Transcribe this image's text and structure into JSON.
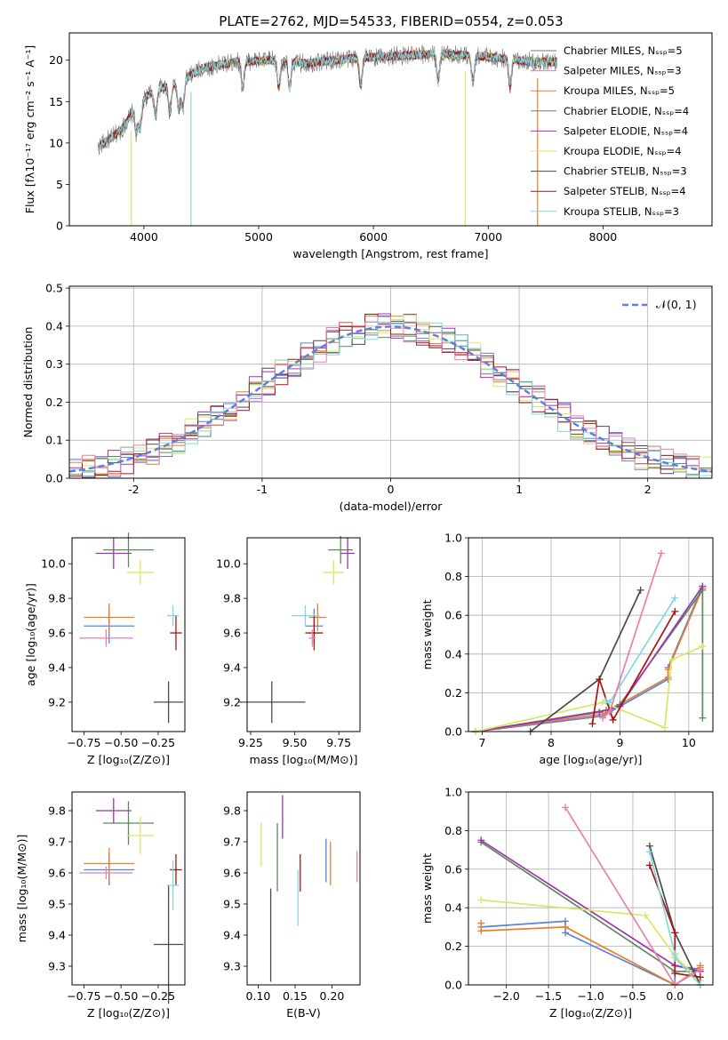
{
  "title": "PLATE=2762, MJD=54533, FIBERID=0554, z=0.053",
  "colors": [
    "#5a82d8",
    "#e87f2a",
    "#5a8a5a",
    "#a032b4",
    "#d8e864",
    "#4a4a4a",
    "#a81414",
    "#80d8e0",
    "#e87faf"
  ],
  "model_colors": {
    "Chabrier MILES": "#777777",
    "Salpeter MILES": "#e87faf",
    "Kroupa MILES": "#e87f2a",
    "Chabrier ELODIE": "#5a8a5a",
    "Salpeter ELODIE": "#a032b4",
    "Kroupa ELODIE": "#d8e864",
    "Chabrier STELIB": "#4a4a4a",
    "Salpeter STELIB": "#a81414",
    "Kroupa STELIB": "#80d8e0"
  },
  "chart_data": [
    {
      "id": "spectrum",
      "type": "line",
      "xlabel": "wavelength [Angstrom, rest frame]",
      "ylabel": "Flux [fλ10⁻¹⁷ erg cm⁻² s⁻¹ A⁻¹]",
      "xlim": [
        3350,
        8950
      ],
      "ylim": [
        0,
        23.3
      ],
      "xticks": [
        4000,
        5000,
        6000,
        7000,
        8000
      ],
      "yticks": [
        0,
        5,
        10,
        15,
        20
      ],
      "grid": false,
      "legend": "upper right",
      "legend_entries": [
        "Chabrier MILES, Nₛₛₚ=5",
        "Salpeter MILES, Nₛₛₚ=3",
        "Kroupa MILES, Nₛₛₚ=5",
        "Chabrier ELODIE, Nₛₛₚ=4",
        "Salpeter ELODIE, Nₛₛₚ=4",
        "Kroupa ELODIE, Nₛₛₚ=4",
        "Chabrier STELIB, Nₛₛₚ=3",
        "Salpeter STELIB, Nₛₛₚ=4",
        "Kroupa STELIB, Nₛₛₚ=3"
      ],
      "continuum": [
        [
          3600,
          9.5
        ],
        [
          3800,
          11.5
        ],
        [
          3950,
          14.8
        ],
        [
          4100,
          16.5
        ],
        [
          4300,
          17.2
        ],
        [
          4500,
          19.0
        ],
        [
          4800,
          19.8
        ],
        [
          5100,
          20.0
        ],
        [
          5400,
          19.6
        ],
        [
          5800,
          20.2
        ],
        [
          6200,
          20.5
        ],
        [
          6600,
          20.8
        ],
        [
          7000,
          20.4
        ],
        [
          7400,
          19.8
        ],
        [
          7600,
          19.8
        ]
      ],
      "x": [
        3600,
        3650,
        3700,
        3750,
        3800,
        3850,
        3900,
        3950,
        4000,
        4100,
        4200,
        4300,
        4400,
        4500,
        4600,
        4700,
        4800,
        4900,
        5000,
        5100,
        5200,
        5300,
        5400,
        5500,
        5600,
        5700,
        5800,
        5900,
        6000,
        6100,
        6200,
        6300,
        6400,
        6500,
        6600,
        6700,
        6800,
        6900,
        7000,
        7100,
        7200,
        7300,
        7400,
        7500,
        7600
      ],
      "drop_lines": [
        {
          "x": 3890,
          "color": "#d8e864"
        },
        {
          "x": 4410,
          "color": "#80d8e0"
        },
        {
          "x": 6800,
          "color": "#d8e864"
        },
        {
          "x": 7430,
          "color": "#e87f2a"
        }
      ]
    },
    {
      "id": "residuals",
      "type": "histogram",
      "xlabel": "(data-model)/error",
      "ylabel": "Normed distribution",
      "xlim": [
        -2.5,
        2.5
      ],
      "ylim": [
        0,
        0.505
      ],
      "xticks": [
        -2,
        -1,
        0,
        1,
        2
      ],
      "yticks": [
        0.0,
        0.1,
        0.2,
        0.3,
        0.4,
        0.5
      ],
      "grid": true,
      "legend": "upper right",
      "legend_entries": [
        "𝒩(0, 1)"
      ],
      "bin_width": 0.1
    },
    {
      "id": "age_vs_Z",
      "type": "scatter",
      "xlabel": "Z [log₁₀(Z/Z⊙)]",
      "ylabel": "age  [log₁₀(age/yr)]",
      "xlim": [
        -0.83,
        -0.07
      ],
      "ylim": [
        9.03,
        10.15
      ],
      "xticks": [
        -0.75,
        -0.5,
        -0.25
      ],
      "xticklabels": [
        "−0.75",
        "−0.50",
        "−0.25"
      ],
      "yticks": [
        9.2,
        9.4,
        9.6,
        9.8,
        10.0
      ],
      "points": [
        {
          "x": -0.58,
          "y": 9.64,
          "xerr": 0.17,
          "yerr": 0.1
        },
        {
          "x": -0.58,
          "y": 9.69,
          "xerr": 0.17,
          "yerr": 0.08
        },
        {
          "x": -0.45,
          "y": 10.08,
          "xerr": 0.17,
          "yerr": 0.1
        },
        {
          "x": -0.55,
          "y": 10.06,
          "xerr": 0.12,
          "yerr": 0.09
        },
        {
          "x": -0.37,
          "y": 9.95,
          "xerr": 0.09,
          "yerr": 0.07
        },
        {
          "x": -0.18,
          "y": 9.2,
          "xerr": 0.1,
          "yerr": 0.12
        },
        {
          "x": -0.13,
          "y": 9.6,
          "xerr": 0.04,
          "yerr": 0.1
        },
        {
          "x": -0.15,
          "y": 9.7,
          "xerr": 0.04,
          "yerr": 0.06
        },
        {
          "x": -0.6,
          "y": 9.57,
          "xerr": 0.18,
          "yerr": 0.05
        }
      ]
    },
    {
      "id": "age_vs_mass",
      "type": "scatter",
      "xlabel": "mass [log₁₀(M/M⊙)]",
      "ylabel": "",
      "xlim": [
        9.23,
        9.87
      ],
      "ylim": [
        9.03,
        10.15
      ],
      "xticks": [
        9.25,
        9.5,
        9.75
      ],
      "xticklabels": [
        "9.25",
        "9.50",
        "9.75"
      ],
      "yticks": [
        9.2,
        9.4,
        9.6,
        9.8,
        10.0
      ],
      "points": [
        {
          "x": 9.61,
          "y": 9.64,
          "xerr": 0.05,
          "yerr": 0.1
        },
        {
          "x": 9.63,
          "y": 9.69,
          "xerr": 0.05,
          "yerr": 0.08
        },
        {
          "x": 9.76,
          "y": 10.08,
          "xerr": 0.07,
          "yerr": 0.08
        },
        {
          "x": 9.8,
          "y": 10.06,
          "xerr": 0.04,
          "yerr": 0.09
        },
        {
          "x": 9.72,
          "y": 9.95,
          "xerr": 0.06,
          "yerr": 0.07
        },
        {
          "x": 9.37,
          "y": 9.2,
          "xerr": 0.19,
          "yerr": 0.12
        },
        {
          "x": 9.61,
          "y": 9.6,
          "xerr": 0.05,
          "yerr": 0.1
        },
        {
          "x": 9.56,
          "y": 9.7,
          "xerr": 0.08,
          "yerr": 0.06
        },
        {
          "x": 9.6,
          "y": 9.57,
          "xerr": 0.02,
          "yerr": 0.05
        }
      ]
    },
    {
      "id": "mass_weight_vs_age",
      "type": "line",
      "xlabel": "age  [log₁₀(age/yr)]",
      "ylabel": "mass weight",
      "xlim": [
        6.8,
        10.35
      ],
      "ylim": [
        0,
        1.0
      ],
      "xticks": [
        7,
        8,
        9,
        10
      ],
      "yticks": [
        0.0,
        0.2,
        0.4,
        0.6,
        0.8,
        1.0
      ],
      "grid": true,
      "series": [
        {
          "x": [
            6.9,
            8.75,
            9.7,
            9.7,
            10.2
          ],
          "y": [
            0.0,
            0.08,
            0.27,
            0.33,
            0.75
          ]
        },
        {
          "x": [
            6.9,
            8.75,
            9.7,
            9.7,
            10.2
          ],
          "y": [
            0.0,
            0.09,
            0.28,
            0.32,
            0.74
          ]
        },
        {
          "x": [
            6.9,
            8.8,
            9.0,
            10.2,
            10.2
          ],
          "y": [
            0.0,
            0.11,
            0.14,
            0.73,
            0.07
          ]
        },
        {
          "x": [
            6.9,
            8.7,
            9.0,
            10.2
          ],
          "y": [
            0.0,
            0.1,
            0.13,
            0.75
          ]
        },
        {
          "x": [
            6.9,
            8.75,
            9.65,
            9.75,
            10.2
          ],
          "y": [
            0.0,
            0.15,
            0.02,
            0.37,
            0.44
          ]
        },
        {
          "x": [
            7.7,
            8.7,
            9.3
          ],
          "y": [
            0.0,
            0.27,
            0.73
          ]
        },
        {
          "x": [
            8.6,
            8.7,
            8.9,
            9.8
          ],
          "y": [
            0.04,
            0.27,
            0.06,
            0.62
          ]
        },
        {
          "x": [
            8.8,
            8.85,
            9.8
          ],
          "y": [
            0.16,
            0.15,
            0.69
          ]
        },
        {
          "x": [
            8.75,
            8.85,
            9.6
          ],
          "y": [
            0.07,
            0.1,
            0.92
          ]
        }
      ]
    },
    {
      "id": "mass_vs_Z",
      "type": "scatter",
      "xlabel": "Z [log₁₀(Z/Z⊙)]",
      "ylabel": "mass [log₁₀(M/M⊙)]",
      "xlim": [
        -0.83,
        -0.07
      ],
      "ylim": [
        9.24,
        9.86
      ],
      "xticks": [
        -0.75,
        -0.5,
        -0.25
      ],
      "xticklabels": [
        "−0.75",
        "−0.50",
        "−0.25"
      ],
      "yticks": [
        9.3,
        9.4,
        9.5,
        9.6,
        9.7,
        9.8
      ],
      "points": [
        {
          "x": -0.58,
          "y": 9.61,
          "xerr": 0.17,
          "yerr": 0.05
        },
        {
          "x": -0.58,
          "y": 9.63,
          "xerr": 0.17,
          "yerr": 0.05
        },
        {
          "x": -0.45,
          "y": 9.76,
          "xerr": 0.17,
          "yerr": 0.07
        },
        {
          "x": -0.55,
          "y": 9.8,
          "xerr": 0.12,
          "yerr": 0.04
        },
        {
          "x": -0.37,
          "y": 9.72,
          "xerr": 0.09,
          "yerr": 0.06
        },
        {
          "x": -0.18,
          "y": 9.37,
          "xerr": 0.1,
          "yerr": 0.19
        },
        {
          "x": -0.13,
          "y": 9.61,
          "xerr": 0.04,
          "yerr": 0.05
        },
        {
          "x": -0.15,
          "y": 9.56,
          "xerr": 0.04,
          "yerr": 0.08
        },
        {
          "x": -0.6,
          "y": 9.6,
          "xerr": 0.18,
          "yerr": 0.02
        }
      ]
    },
    {
      "id": "mass_vs_ebv",
      "type": "scatter",
      "xlabel": "E(B-V)",
      "ylabel": "",
      "xlim": [
        0.085,
        0.238
      ],
      "ylim": [
        9.24,
        9.86
      ],
      "xticks": [
        0.1,
        0.15,
        0.2
      ],
      "xticklabels": [
        "0.10",
        "0.15",
        "0.20"
      ],
      "yticks": [
        9.3,
        9.4,
        9.5,
        9.6,
        9.7,
        9.8
      ],
      "points": [
        {
          "x": 0.192,
          "y": 9.64,
          "yerr": 0.07
        },
        {
          "x": 0.198,
          "y": 9.63,
          "yerr": 0.07
        },
        {
          "x": 0.126,
          "y": 9.65,
          "yerr": 0.11
        },
        {
          "x": 0.133,
          "y": 9.78,
          "yerr": 0.07
        },
        {
          "x": 0.104,
          "y": 9.69,
          "yerr": 0.07
        },
        {
          "x": 0.117,
          "y": 9.4,
          "yerr": 0.15
        },
        {
          "x": 0.157,
          "y": 9.6,
          "yerr": 0.06
        },
        {
          "x": 0.154,
          "y": 9.52,
          "yerr": 0.09
        },
        {
          "x": 0.234,
          "y": 9.62,
          "yerr": 0.05
        }
      ]
    },
    {
      "id": "mass_weight_vs_Z",
      "type": "line",
      "xlabel": "Z [log₁₀(Z/Z⊙)]",
      "ylabel": "mass weight",
      "xlim": [
        -2.45,
        0.45
      ],
      "ylim": [
        0,
        1.0
      ],
      "xticks": [
        -2.0,
        -1.5,
        -1.0,
        -0.5,
        0.0
      ],
      "xticklabels": [
        "−2.0",
        "−1.5",
        "−1.0",
        "−0.5",
        "0.0"
      ],
      "yticks": [
        0.0,
        0.2,
        0.4,
        0.6,
        0.8,
        1.0
      ],
      "grid": true,
      "series": [
        {
          "x": [
            -2.3,
            -1.3,
            -1.3,
            0.0,
            0.0,
            0.3
          ],
          "y": [
            0.3,
            0.33,
            0.27,
            0.0,
            0.1,
            0.08
          ]
        },
        {
          "x": [
            -2.3,
            -2.3,
            -1.3,
            0.0,
            0.3,
            0.3
          ],
          "y": [
            0.32,
            0.28,
            0.3,
            0.0,
            0.09,
            0.1
          ]
        },
        {
          "x": [
            -2.3,
            0.0,
            0.3
          ],
          "y": [
            0.74,
            0.07,
            0.07
          ]
        },
        {
          "x": [
            -2.3,
            0.0,
            0.3
          ],
          "y": [
            0.75,
            0.1,
            0.07
          ]
        },
        {
          "x": [
            -2.3,
            -0.35,
            0.0,
            0.3
          ],
          "y": [
            0.44,
            0.36,
            0.15,
            0.02
          ]
        },
        {
          "x": [
            -0.3,
            0.0,
            0.3
          ],
          "y": [
            0.72,
            0.27,
            0.0
          ]
        },
        {
          "x": [
            -0.3,
            0.0,
            0.0,
            0.3
          ],
          "y": [
            0.62,
            0.27,
            0.06,
            0.04
          ]
        },
        {
          "x": [
            -0.3,
            0.0,
            0.0,
            0.3
          ],
          "y": [
            0.69,
            0.16,
            0.14,
            0.0
          ]
        },
        {
          "x": [
            -1.3,
            0.0,
            0.3
          ],
          "y": [
            0.92,
            0.0,
            0.08
          ]
        }
      ]
    }
  ]
}
